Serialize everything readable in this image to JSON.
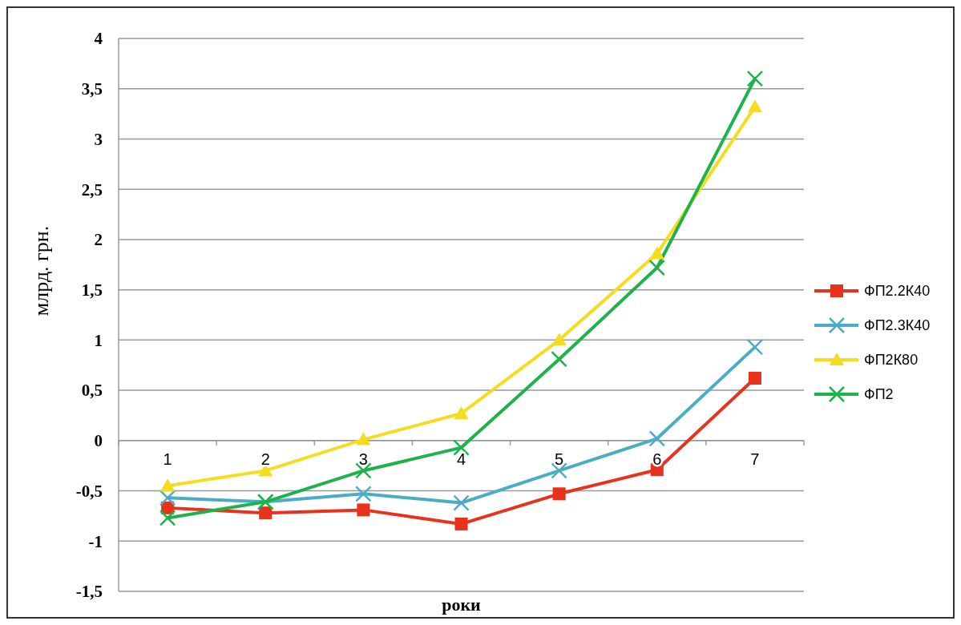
{
  "chart_data": {
    "type": "line",
    "xlabel": "роки",
    "ylabel": "млрд. грн.",
    "categories": [
      "1",
      "2",
      "3",
      "4",
      "5",
      "6",
      "7"
    ],
    "series": [
      {
        "name": "ФП2.2К40",
        "color": "#e8321e",
        "marker": "square",
        "values": [
          -0.67,
          -0.72,
          -0.69,
          -0.83,
          -0.53,
          -0.29,
          0.62
        ]
      },
      {
        "name": "ФП2.3К40",
        "color": "#4bacc6",
        "marker": "cross",
        "values": [
          -0.57,
          -0.61,
          -0.53,
          -0.62,
          -0.3,
          0.02,
          0.93
        ]
      },
      {
        "name": "ФП2К80",
        "color": "#f5dc1e",
        "marker": "triangle",
        "values": [
          -0.45,
          -0.3,
          0.01,
          0.27,
          1.0,
          1.86,
          3.32
        ]
      },
      {
        "name": "ФП2",
        "color": "#1db34a",
        "marker": "cross",
        "values": [
          -0.77,
          -0.61,
          -0.3,
          -0.07,
          0.81,
          1.72,
          3.6
        ]
      }
    ],
    "ylim": [
      -1.5,
      4
    ],
    "yticks": [
      {
        "value": -1.5,
        "label": "-1,5"
      },
      -1,
      {
        "value": -0.5,
        "label": "-0,5"
      },
      0,
      {
        "value": 0.5,
        "label": "0,5"
      },
      1,
      {
        "value": 1.5,
        "label": "1,5"
      },
      2,
      {
        "value": 2.5,
        "label": "2,5"
      },
      3,
      {
        "value": 3.5,
        "label": "3,5"
      },
      4
    ],
    "grid": "y",
    "legend": "right"
  }
}
